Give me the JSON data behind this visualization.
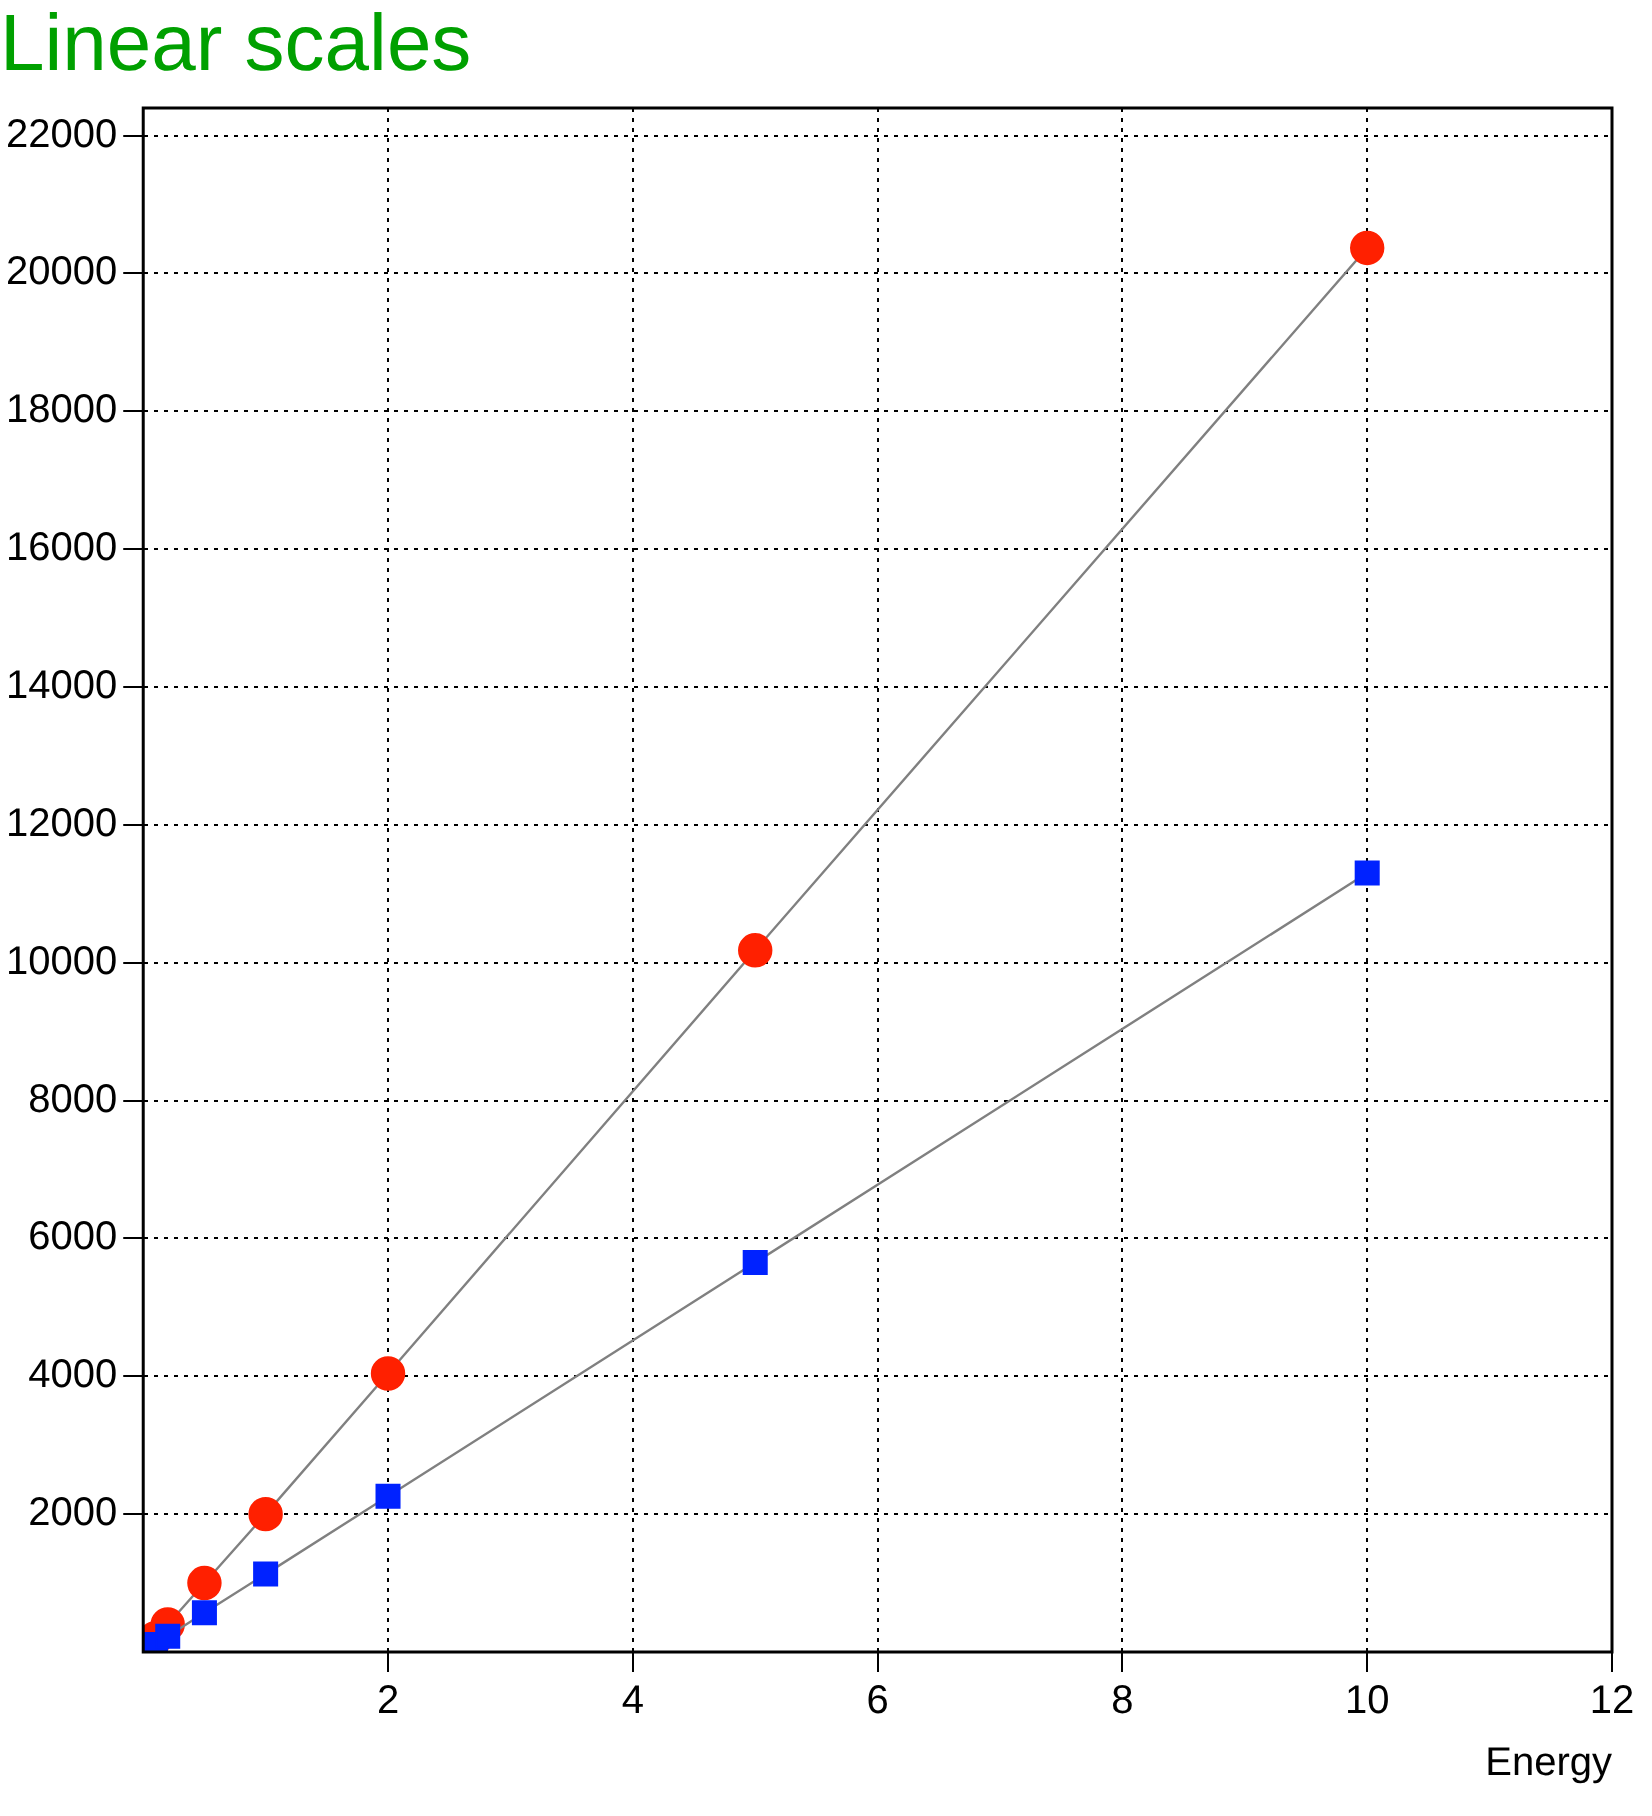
{
  "chart_data": {
    "type": "line",
    "title": "Linear scales",
    "xlabel": "Energy",
    "xlim": [
      0,
      12
    ],
    "xticks": [
      2,
      4,
      6,
      8,
      10,
      12
    ],
    "ylim": [
      0,
      22400
    ],
    "yticks": [
      2000,
      4000,
      6000,
      8000,
      10000,
      12000,
      14000,
      16000,
      18000,
      20000,
      22000
    ],
    "grid": true,
    "legend": false,
    "line_style": "solid",
    "series": [
      {
        "color": "#ff2000",
        "marker": "circle",
        "x": [
          0.1,
          0.2,
          0.5,
          1,
          2,
          5,
          10
        ],
        "values": [
          200,
          400,
          1000,
          2000,
          4040,
          10180,
          20370
        ]
      },
      {
        "color": "#0022ff",
        "marker": "square",
        "x": [
          0.1,
          0.2,
          0.5,
          1,
          2,
          5,
          10
        ],
        "values": [
          110,
          230,
          570,
          1130,
          2260,
          5650,
          11300
        ]
      }
    ]
  }
}
